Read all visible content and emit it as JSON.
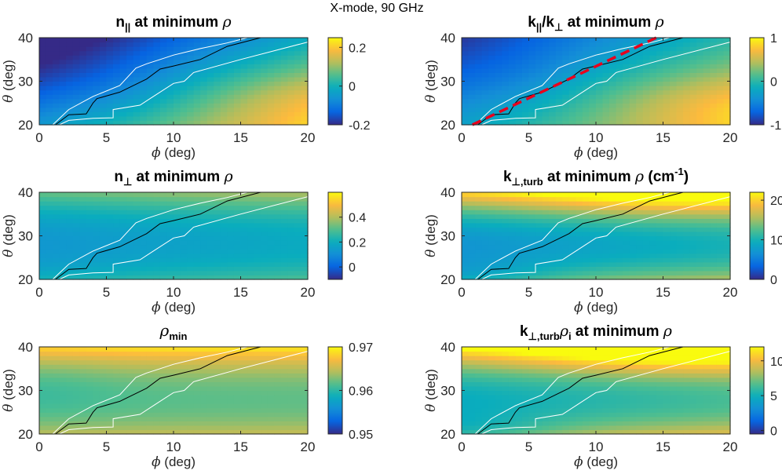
{
  "figure": {
    "suptitle": "X-mode, 90 GHz"
  },
  "chart_data": [
    {
      "type": "heatmap",
      "title_parts": {
        "main": "n",
        "sub": "||",
        "rest": " at minimum ",
        "greek": "ρ",
        "tail": ""
      },
      "xlabel_greek": "ϕ",
      "xlabel": " (deg)",
      "ylabel_greek": "θ",
      "ylabel": " (deg)",
      "xlim": [
        0,
        20
      ],
      "ylim": [
        20,
        40
      ],
      "xticks": [
        "0",
        "5",
        "10",
        "15",
        "20"
      ],
      "yticks": [
        "20",
        "30",
        "40"
      ],
      "clim": [
        -0.2,
        0.25
      ],
      "cticks": [
        {
          "v": 0.2,
          "label": "0.2"
        },
        {
          "v": 0,
          "label": "0"
        },
        {
          "v": -0.2,
          "label": "-0.2"
        }
      ],
      "field": "npar",
      "dashed_line": null
    },
    {
      "type": "heatmap",
      "title_parts": {
        "main": "k",
        "sub": "||",
        "rest": "/k",
        "sub2": "⊥",
        "rest2": " at minimum ",
        "greek": "ρ",
        "tail": ""
      },
      "xlabel_greek": "ϕ",
      "xlabel": " (deg)",
      "ylabel_greek": "θ",
      "ylabel": " (deg)",
      "xlim": [
        0,
        20
      ],
      "ylim": [
        20,
        40
      ],
      "xticks": [
        "0",
        "5",
        "10",
        "15",
        "20"
      ],
      "yticks": [
        "20",
        "30",
        "40"
      ],
      "clim": [
        -1,
        1
      ],
      "cticks": [
        {
          "v": 1,
          "label": "1"
        },
        {
          "v": 0,
          "label": "0"
        },
        {
          "v": -1,
          "label": "-1"
        }
      ],
      "field": "kratio",
      "dashed_line": {
        "x": [
          0.8,
          14.5
        ],
        "y": [
          20,
          40
        ],
        "color": "#e8001c"
      }
    },
    {
      "type": "heatmap",
      "title_parts": {
        "main": "n",
        "sub": "⊥",
        "rest": " at minimum ",
        "greek": "ρ",
        "tail": ""
      },
      "xlabel_greek": "ϕ",
      "xlabel": " (deg)",
      "ylabel_greek": "θ",
      "ylabel": " (deg)",
      "xlim": [
        0,
        20
      ],
      "ylim": [
        20,
        40
      ],
      "xticks": [
        "0",
        "5",
        "10",
        "15",
        "20"
      ],
      "yticks": [
        "20",
        "30",
        "40"
      ],
      "clim": [
        -0.1,
        0.6
      ],
      "cticks": [
        {
          "v": 0.4,
          "label": "0.4"
        },
        {
          "v": 0.2,
          "label": "0.2"
        },
        {
          "v": 0,
          "label": "0"
        }
      ],
      "field": "nperp",
      "dashed_line": null
    },
    {
      "type": "heatmap",
      "title_parts": {
        "main": "k",
        "sub": "⊥,turb",
        "rest": " at minimum ",
        "greek": "ρ",
        "tail": " (cm",
        "sup": "-1",
        "tail2": ")"
      },
      "xlabel_greek": "ϕ",
      "xlabel": " (deg)",
      "ylabel_greek": "θ",
      "ylabel": " (deg)",
      "xlim": [
        0,
        20
      ],
      "ylim": [
        20,
        40
      ],
      "xticks": [
        "0",
        "5",
        "10",
        "15",
        "20"
      ],
      "yticks": [
        "20",
        "30",
        "40"
      ],
      "clim": [
        0,
        22
      ],
      "cticks": [
        {
          "v": 20,
          "label": "20"
        },
        {
          "v": 10,
          "label": "10"
        },
        {
          "v": 0,
          "label": "0"
        }
      ],
      "field": "kturb",
      "dashed_line": null
    },
    {
      "type": "heatmap",
      "title_parts": {
        "main": "",
        "greek_first": "ρ",
        "sub": "min",
        "rest": "",
        "greek": "",
        "tail": ""
      },
      "xlabel_greek": "ϕ",
      "xlabel": " (deg)",
      "ylabel_greek": "θ",
      "ylabel": " (deg)",
      "xlim": [
        0,
        20
      ],
      "ylim": [
        20,
        40
      ],
      "xticks": [
        "0",
        "5",
        "10",
        "15",
        "20"
      ],
      "yticks": [
        "20",
        "30",
        "40"
      ],
      "clim": [
        0.95,
        0.97
      ],
      "cticks": [
        {
          "v": 0.97,
          "label": "0.97"
        },
        {
          "v": 0.96,
          "label": "0.96"
        },
        {
          "v": 0.95,
          "label": "0.95"
        }
      ],
      "field": "rhomin",
      "dashed_line": null
    },
    {
      "type": "heatmap",
      "title_parts": {
        "main": "k",
        "sub": "⊥,turb",
        "rest": "",
        "greek_mid": "ρ",
        "sub3": "i",
        "rest2": " at minimum ",
        "greek": "ρ",
        "tail": ""
      },
      "xlabel_greek": "ϕ",
      "xlabel": " (deg)",
      "ylabel_greek": "θ",
      "ylabel": " (deg)",
      "xlim": [
        0,
        20
      ],
      "ylim": [
        20,
        40
      ],
      "xticks": [
        "0",
        "5",
        "10",
        "15",
        "20"
      ],
      "yticks": [
        "20",
        "30",
        "40"
      ],
      "clim": [
        -0.5,
        12
      ],
      "cticks": [
        {
          "v": 10,
          "label": "10"
        },
        {
          "v": 5,
          "label": "5"
        },
        {
          "v": 0,
          "label": "0"
        }
      ],
      "field": "krho",
      "dashed_line": null
    }
  ],
  "overlay_curves": {
    "black": {
      "x": [
        1.2,
        2.2,
        3.5,
        4,
        4.3,
        6,
        8,
        9,
        10,
        12,
        14,
        16.5
      ],
      "y": [
        20,
        22.3,
        22.5,
        25,
        26,
        27.5,
        30.5,
        32.8,
        33.5,
        35,
        38,
        40
      ]
    },
    "white_upper": {
      "x": [
        1,
        2.2,
        4,
        6,
        7.2,
        8,
        9,
        10,
        12,
        14,
        15.5
      ],
      "y": [
        20,
        23.5,
        26.5,
        29,
        33,
        34,
        35,
        36,
        37.5,
        38.8,
        40
      ]
    },
    "white_lower": {
      "x": [
        1.5,
        2.2,
        4,
        5.5,
        5.5,
        7.5,
        8.5,
        10,
        10.8,
        11.5,
        15,
        20
      ],
      "y": [
        20,
        21,
        21.5,
        21.6,
        23.5,
        24.5,
        26.5,
        29.5,
        30,
        32,
        35,
        39
      ]
    }
  }
}
